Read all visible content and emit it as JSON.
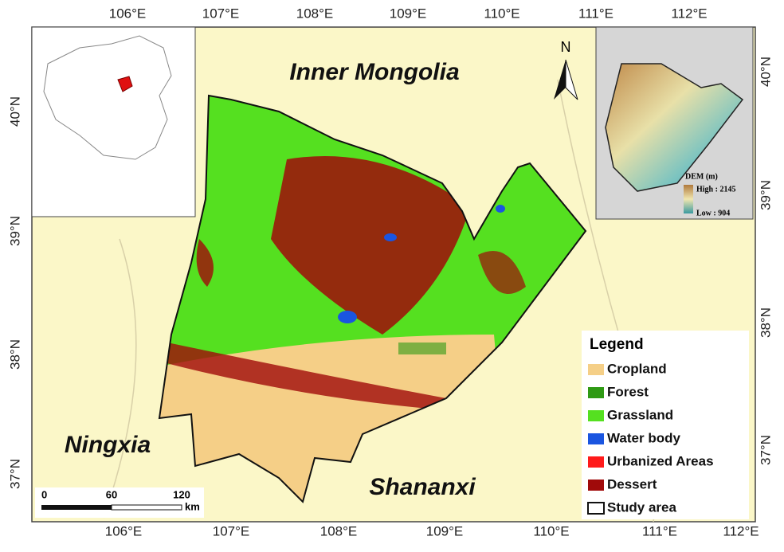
{
  "top_ticks": [
    "106°E",
    "107°E",
    "108°E",
    "109°E",
    "110°E",
    "111°E",
    "112°E"
  ],
  "bottom_ticks": [
    "106°E",
    "107°E",
    "108°E",
    "109°E",
    "110°E",
    "111°E",
    "112°E"
  ],
  "left_ticks": [
    "40°N",
    "39°N",
    "38°N",
    "37°N"
  ],
  "right_ticks": [
    "40°N",
    "39°N",
    "38°N",
    "37°N"
  ],
  "regions": [
    "Inner Mongolia",
    "Ningxia",
    "Shananxi"
  ],
  "north_arrow": "N",
  "dem_inset": {
    "title": "DEM (m)",
    "high": "High : 2145",
    "low": "Low : 904"
  },
  "legend": {
    "title": "Legend",
    "items": [
      {
        "name": "Cropland",
        "color": "#f5cf87"
      },
      {
        "name": "Forest",
        "color": "#2f9a14"
      },
      {
        "name": "Grassland",
        "color": "#55e020"
      },
      {
        "name": "Water body",
        "color": "#1a55e0"
      },
      {
        "name": "Urbanized Areas",
        "color": "#ff1a1a"
      },
      {
        "name": "Dessert",
        "color": "#a00a0a"
      },
      {
        "name": "Study area",
        "color": "#ffffff"
      }
    ]
  },
  "scale_bar": {
    "labels": [
      "0",
      "60",
      "120"
    ],
    "unit": "km"
  }
}
